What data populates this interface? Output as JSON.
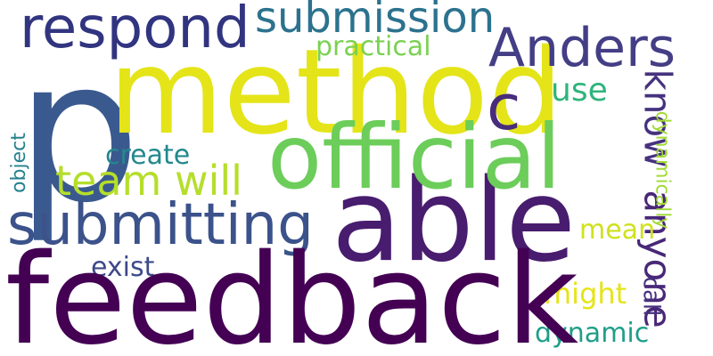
{
  "background": "#ffffff",
  "words": {
    "p": {
      "text": "p",
      "color": "#3a5a8f"
    },
    "method": {
      "text": "method",
      "color": "#e4e419"
    },
    "feedback": {
      "text": "feedback",
      "color": "#440154"
    },
    "able": {
      "text": "able",
      "color": "#481c6e"
    },
    "official": {
      "text": "official",
      "color": "#6ccd5a"
    },
    "submitting": {
      "text": "submitting",
      "color": "#3b528b"
    },
    "respond": {
      "text": "respond",
      "color": "#31347f"
    },
    "anders": {
      "text": "Anders",
      "color": "#433e85"
    },
    "submission": {
      "text": "submission",
      "color": "#2c728e"
    },
    "c": {
      "text": "c",
      "color": "#472d7b"
    },
    "team_will": {
      "text": "team will",
      "color": "#b5de2b"
    },
    "practical": {
      "text": "practical",
      "color": "#7ad151"
    },
    "use": {
      "text": "use",
      "color": "#2fb47c"
    },
    "know": {
      "text": "know",
      "color": "#46327e"
    },
    "create": {
      "text": "create",
      "color": "#23888e"
    },
    "anyone": {
      "text": "anyone",
      "color": "#482878"
    },
    "dynamically": {
      "text": "dynamically",
      "color": "#a2da37"
    },
    "object": {
      "text": "object",
      "color": "#26828e"
    },
    "exist": {
      "text": "exist",
      "color": "#3e4989"
    },
    "mean": {
      "text": "mean",
      "color": "#d0e11c"
    },
    "might": {
      "text": "might",
      "color": "#e5e419"
    },
    "call": {
      "text": "call",
      "color": "#46307e"
    },
    "dynamic": {
      "text": "dynamic",
      "color": "#1f9e89"
    }
  }
}
